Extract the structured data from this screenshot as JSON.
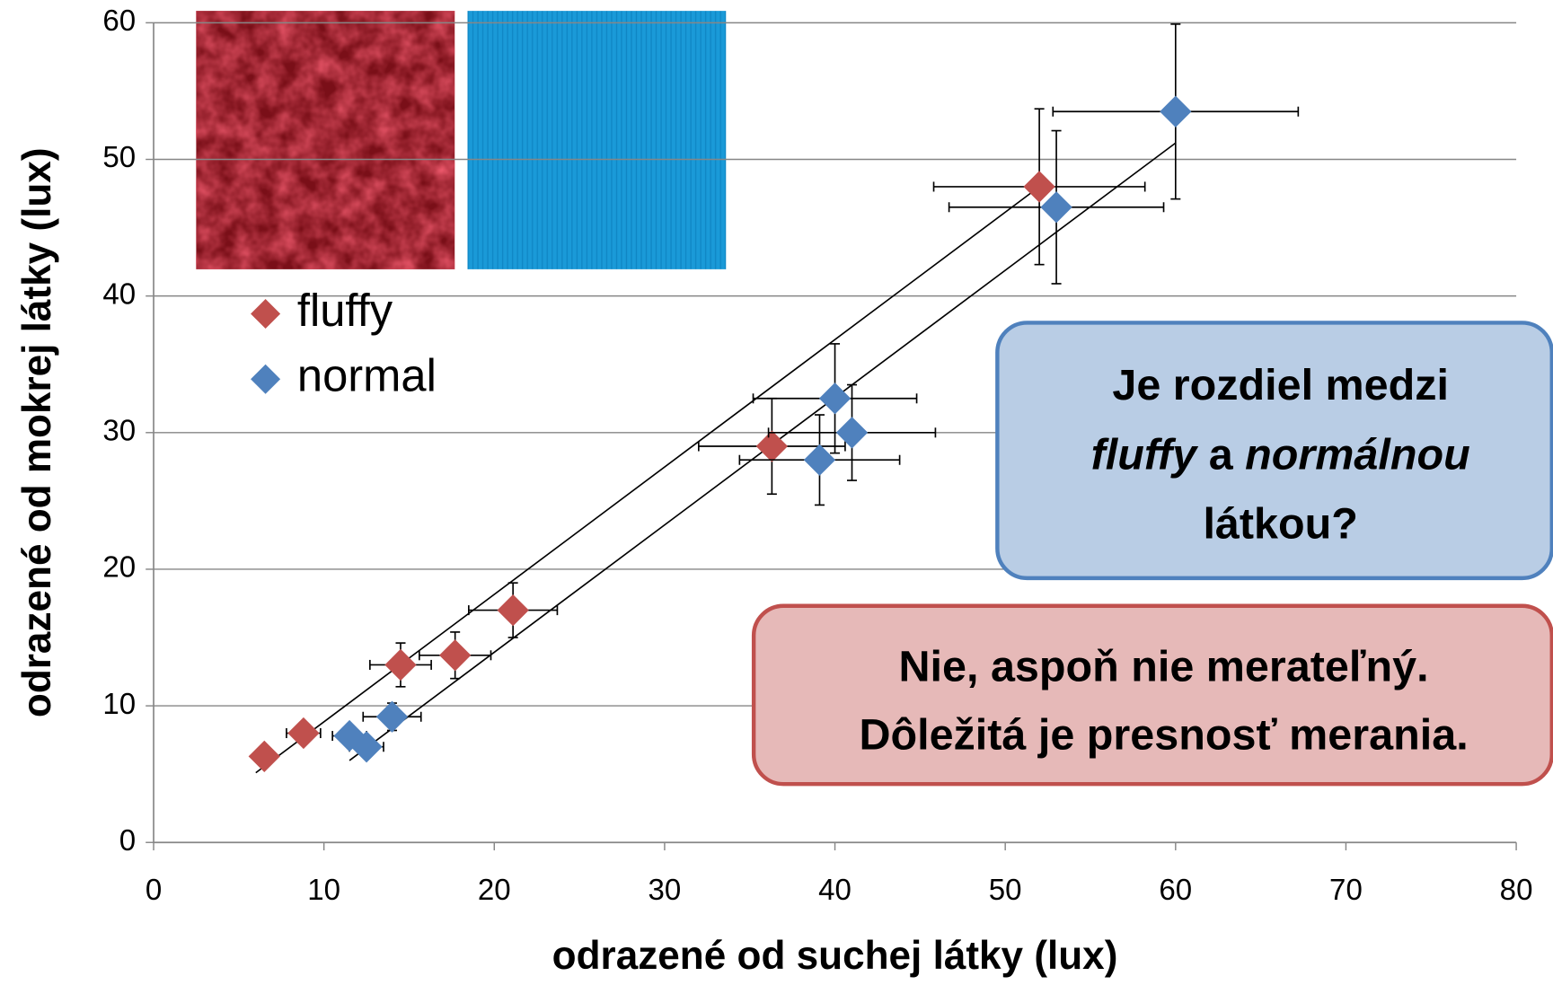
{
  "chart_data": {
    "type": "scatter",
    "xlabel": "odrazené od suchej látky (lux)",
    "ylabel": "odrazené od mokrej látky (lux)",
    "xlim": [
      0,
      80
    ],
    "ylim": [
      0,
      60
    ],
    "xticks": [
      0,
      10,
      20,
      30,
      40,
      50,
      60,
      70,
      80
    ],
    "yticks": [
      0,
      10,
      20,
      30,
      40,
      50,
      60
    ],
    "grid": "y",
    "legend": "upper left",
    "series": [
      {
        "name": "fluffy",
        "color": "#c0504d",
        "marker": "diamond",
        "x": [
          6.5,
          8.8,
          14.5,
          17.7,
          21.1,
          36.3,
          52.0
        ],
        "y": [
          6.3,
          8.0,
          13.0,
          13.7,
          17.0,
          29.0,
          48.0
        ],
        "xerr": [
          0.5,
          1.0,
          1.8,
          2.1,
          2.6,
          4.3,
          6.2
        ],
        "yerr": [
          0.3,
          0.5,
          1.6,
          1.7,
          2.0,
          3.5,
          5.7
        ],
        "trendline": {
          "x": [
            6.0,
            52.0
          ],
          "y": [
            5.1,
            48.0
          ]
        }
      },
      {
        "name": "normal",
        "color": "#4f81bd",
        "marker": "diamond",
        "x": [
          11.5,
          12.5,
          14.0,
          39.1,
          40.0,
          41.0,
          53.0,
          60.0
        ],
        "y": [
          7.8,
          7.0,
          9.2,
          28.0,
          32.5,
          30.0,
          46.5,
          53.5
        ],
        "xerr": [
          1.0,
          1.0,
          1.7,
          4.7,
          4.8,
          4.9,
          6.3,
          7.2
        ],
        "yerr": [
          0.5,
          0.5,
          1.0,
          3.3,
          4.0,
          3.5,
          5.6,
          6.4
        ],
        "trendline": {
          "x": [
            11.5,
            60.0
          ],
          "y": [
            6.0,
            51.2
          ]
        }
      }
    ],
    "annotations": [
      {
        "fill": "#b9cde5",
        "stroke": "#4f81bd",
        "lines": [
          [
            {
              "text": "Je rozdiel medzi",
              "italic": false
            }
          ],
          [
            {
              "text": "fluffy",
              "italic": true
            },
            {
              "text": " a ",
              "italic": false
            },
            {
              "text": "normálnou",
              "italic": true
            }
          ],
          [
            {
              "text": "látkou?",
              "italic": false
            }
          ]
        ]
      },
      {
        "fill": "#e6b9b8",
        "stroke": "#c0504d",
        "lines": [
          [
            {
              "text": "Nie, aspoň nie merateľný.",
              "italic": false
            }
          ],
          [
            {
              "text": "Dôležitá je presnosť merania.",
              "italic": false
            }
          ]
        ]
      }
    ]
  }
}
